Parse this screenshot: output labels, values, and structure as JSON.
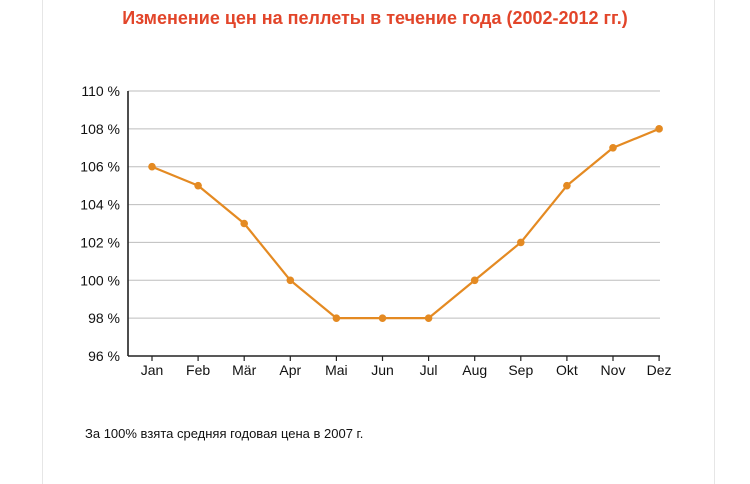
{
  "chart_data": {
    "type": "line",
    "title": "Изменение цен на пеллеты в течение года (2002-2012 гг.)",
    "categories": [
      "Jan",
      "Feb",
      "Mär",
      "Apr",
      "Mai",
      "Jun",
      "Jul",
      "Aug",
      "Sep",
      "Okt",
      "Nov",
      "Dez"
    ],
    "series": [
      {
        "values": [
          106,
          105,
          103,
          100,
          98,
          98,
          98,
          100,
          102,
          105,
          107,
          108
        ]
      }
    ],
    "ylim": [
      96,
      110
    ],
    "yticks": [
      96,
      98,
      100,
      102,
      104,
      106,
      108,
      110
    ],
    "ytick_labels": [
      "96 %",
      "98 %",
      "100 %",
      "102 %",
      "104 %",
      "106 %",
      "108 %",
      "110 %"
    ],
    "grid": true,
    "colors": {
      "line": "#e48a22",
      "title": "#e2452a",
      "grid": "#bdbdbd"
    }
  },
  "note": "За 100% взята средняя годовая цена в 2007 г."
}
